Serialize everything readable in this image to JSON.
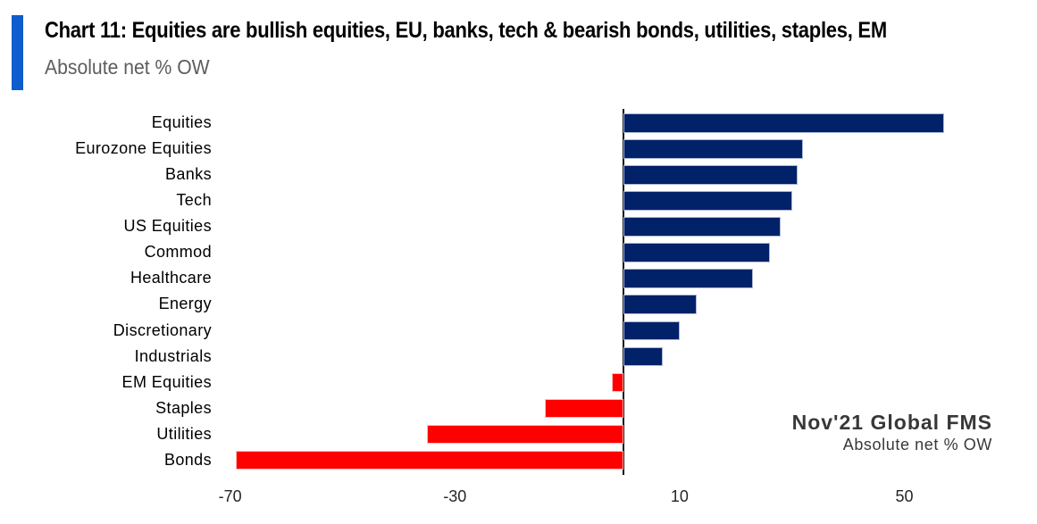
{
  "header": {
    "title": "Chart 11: Equities are bullish equities, EU, banks, tech & bearish bonds, utilities, staples, EM",
    "subtitle": "Absolute net % OW",
    "accent_color": "#0e5ccd"
  },
  "chart_data": {
    "type": "bar",
    "orientation": "horizontal",
    "title": "Chart 11: Equities are bullish equities, EU, banks, tech & bearish bonds, utilities, staples, EM",
    "subtitle": "Absolute net % OW",
    "categories": [
      "Equities",
      "Eurozone Equities",
      "Banks",
      "Tech",
      "US Equities",
      "Commod",
      "Healthcare",
      "Energy",
      "Discretionary",
      "Industrials",
      "EM Equities",
      "Staples",
      "Utilities",
      "Bonds"
    ],
    "values": [
      57,
      32,
      31,
      30,
      28,
      26,
      23,
      13,
      10,
      7,
      -2,
      -14,
      -35,
      -69
    ],
    "xlabel": "",
    "ylabel": "",
    "x_ticks": [
      -70,
      -30,
      10,
      50
    ],
    "xlim": [
      -73,
      74
    ],
    "grid": false,
    "legend": false,
    "positive_color": "#012169",
    "negative_color": "#ff0000",
    "positive_border": "#aeb8d8",
    "negative_border": "#ffbcbc",
    "annotation": {
      "title": "Nov'21 Global FMS",
      "subtitle": "Absolute net % OW"
    }
  }
}
